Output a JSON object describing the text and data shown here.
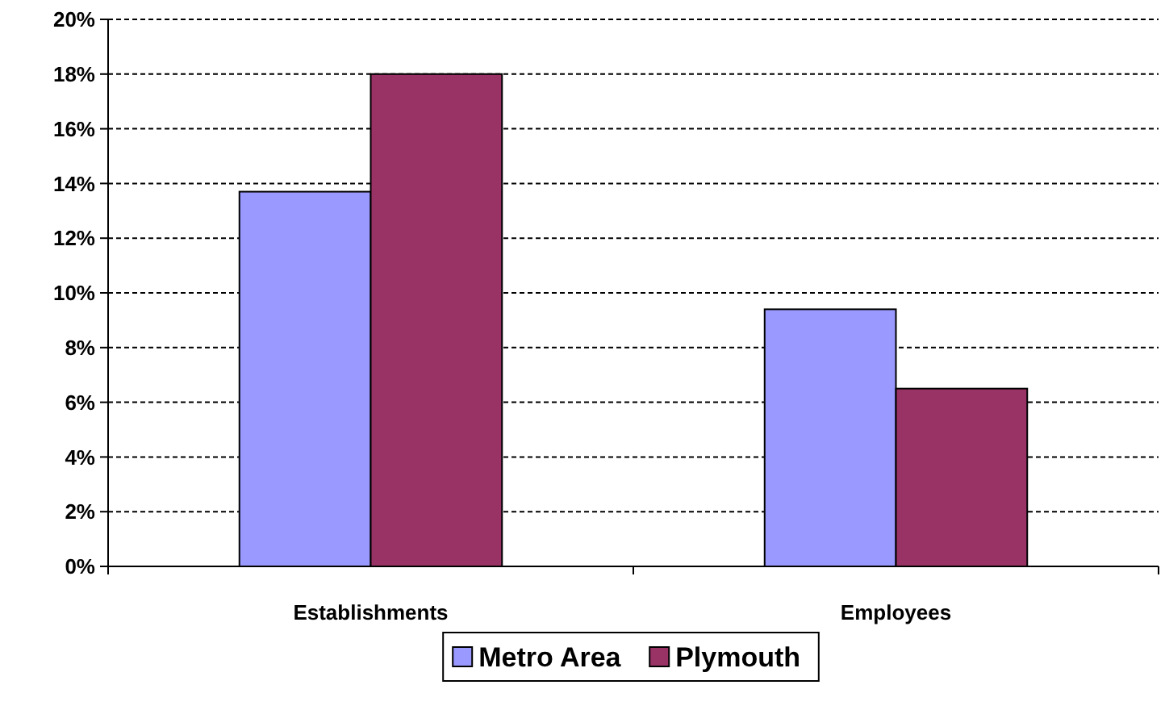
{
  "chart_data": {
    "type": "bar",
    "categories": [
      "Establishments",
      "Employees"
    ],
    "series": [
      {
        "name": "Metro Area",
        "color": "#9999ff",
        "values": [
          13.7,
          9.4
        ]
      },
      {
        "name": "Plymouth",
        "color": "#993366",
        "values": [
          18.0,
          6.5
        ]
      }
    ],
    "ylim": [
      0,
      20
    ],
    "yticks": [
      {
        "value": 0,
        "label": "0%"
      },
      {
        "value": 2,
        "label": "2%"
      },
      {
        "value": 4,
        "label": "4%"
      },
      {
        "value": 6,
        "label": "6%"
      },
      {
        "value": 8,
        "label": "8%"
      },
      {
        "value": 10,
        "label": "10%"
      },
      {
        "value": 12,
        "label": "12%"
      },
      {
        "value": 14,
        "label": "14%"
      },
      {
        "value": 16,
        "label": "16%"
      },
      {
        "value": 18,
        "label": "18%"
      },
      {
        "value": 20,
        "label": "20%"
      }
    ],
    "grid": "y",
    "legend": "bottom"
  }
}
